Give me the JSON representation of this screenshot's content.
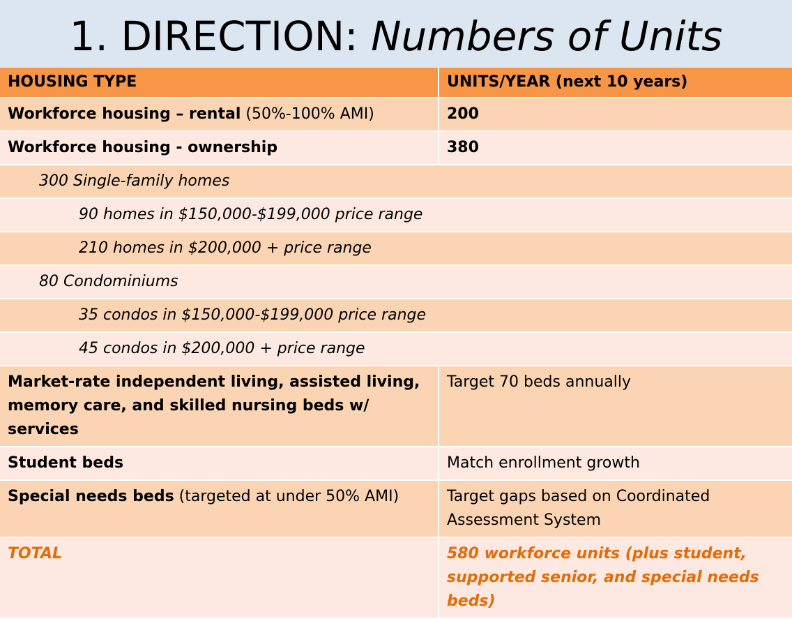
{
  "title": {
    "prefix": "1. DIRECTION: ",
    "italic": "Numbers of Units"
  },
  "table": {
    "headers": [
      "HOUSING TYPE",
      "UNITS/YEAR (next 10 years)"
    ],
    "rows": {
      "r1": {
        "bold": "Workforce housing – rental",
        "normal": " (50%-100% AMI)",
        "units": "200"
      },
      "r2": {
        "bold": "Workforce housing - ownership",
        "units": "380"
      },
      "r3": {
        "text": "300 Single-family homes"
      },
      "r4": {
        "text": "90 homes in $150,000-$199,000 price range"
      },
      "r5": {
        "text": "210 homes in $200,000 + price range"
      },
      "r6": {
        "text": "80 Condominiums"
      },
      "r7": {
        "text": "35 condos in $150,000-$199,000 price range"
      },
      "r8": {
        "text": "45 condos in $200,000 + price range"
      },
      "r9": {
        "bold": "Market-rate independent living, assisted living, memory care, and skilled nursing beds w/ services",
        "units": "Target 70 beds annually"
      },
      "r10": {
        "bold": "Student beds",
        "units": "Match enrollment growth"
      },
      "r11": {
        "bold": "Special needs beds",
        "normal": " (targeted at under 50% AMI)",
        "units": "Target gaps based on Coordinated Assessment System"
      },
      "total": {
        "label": "TOTAL",
        "units": "580 workforce units (plus student, supported senior, and special needs beds)"
      }
    }
  },
  "colors": {
    "title_bg": "#dce6f1",
    "header_bg": "#f79646",
    "row_dark": "#fbd4b4",
    "row_light": "#fde9e1",
    "total_text": "#e36c09"
  }
}
